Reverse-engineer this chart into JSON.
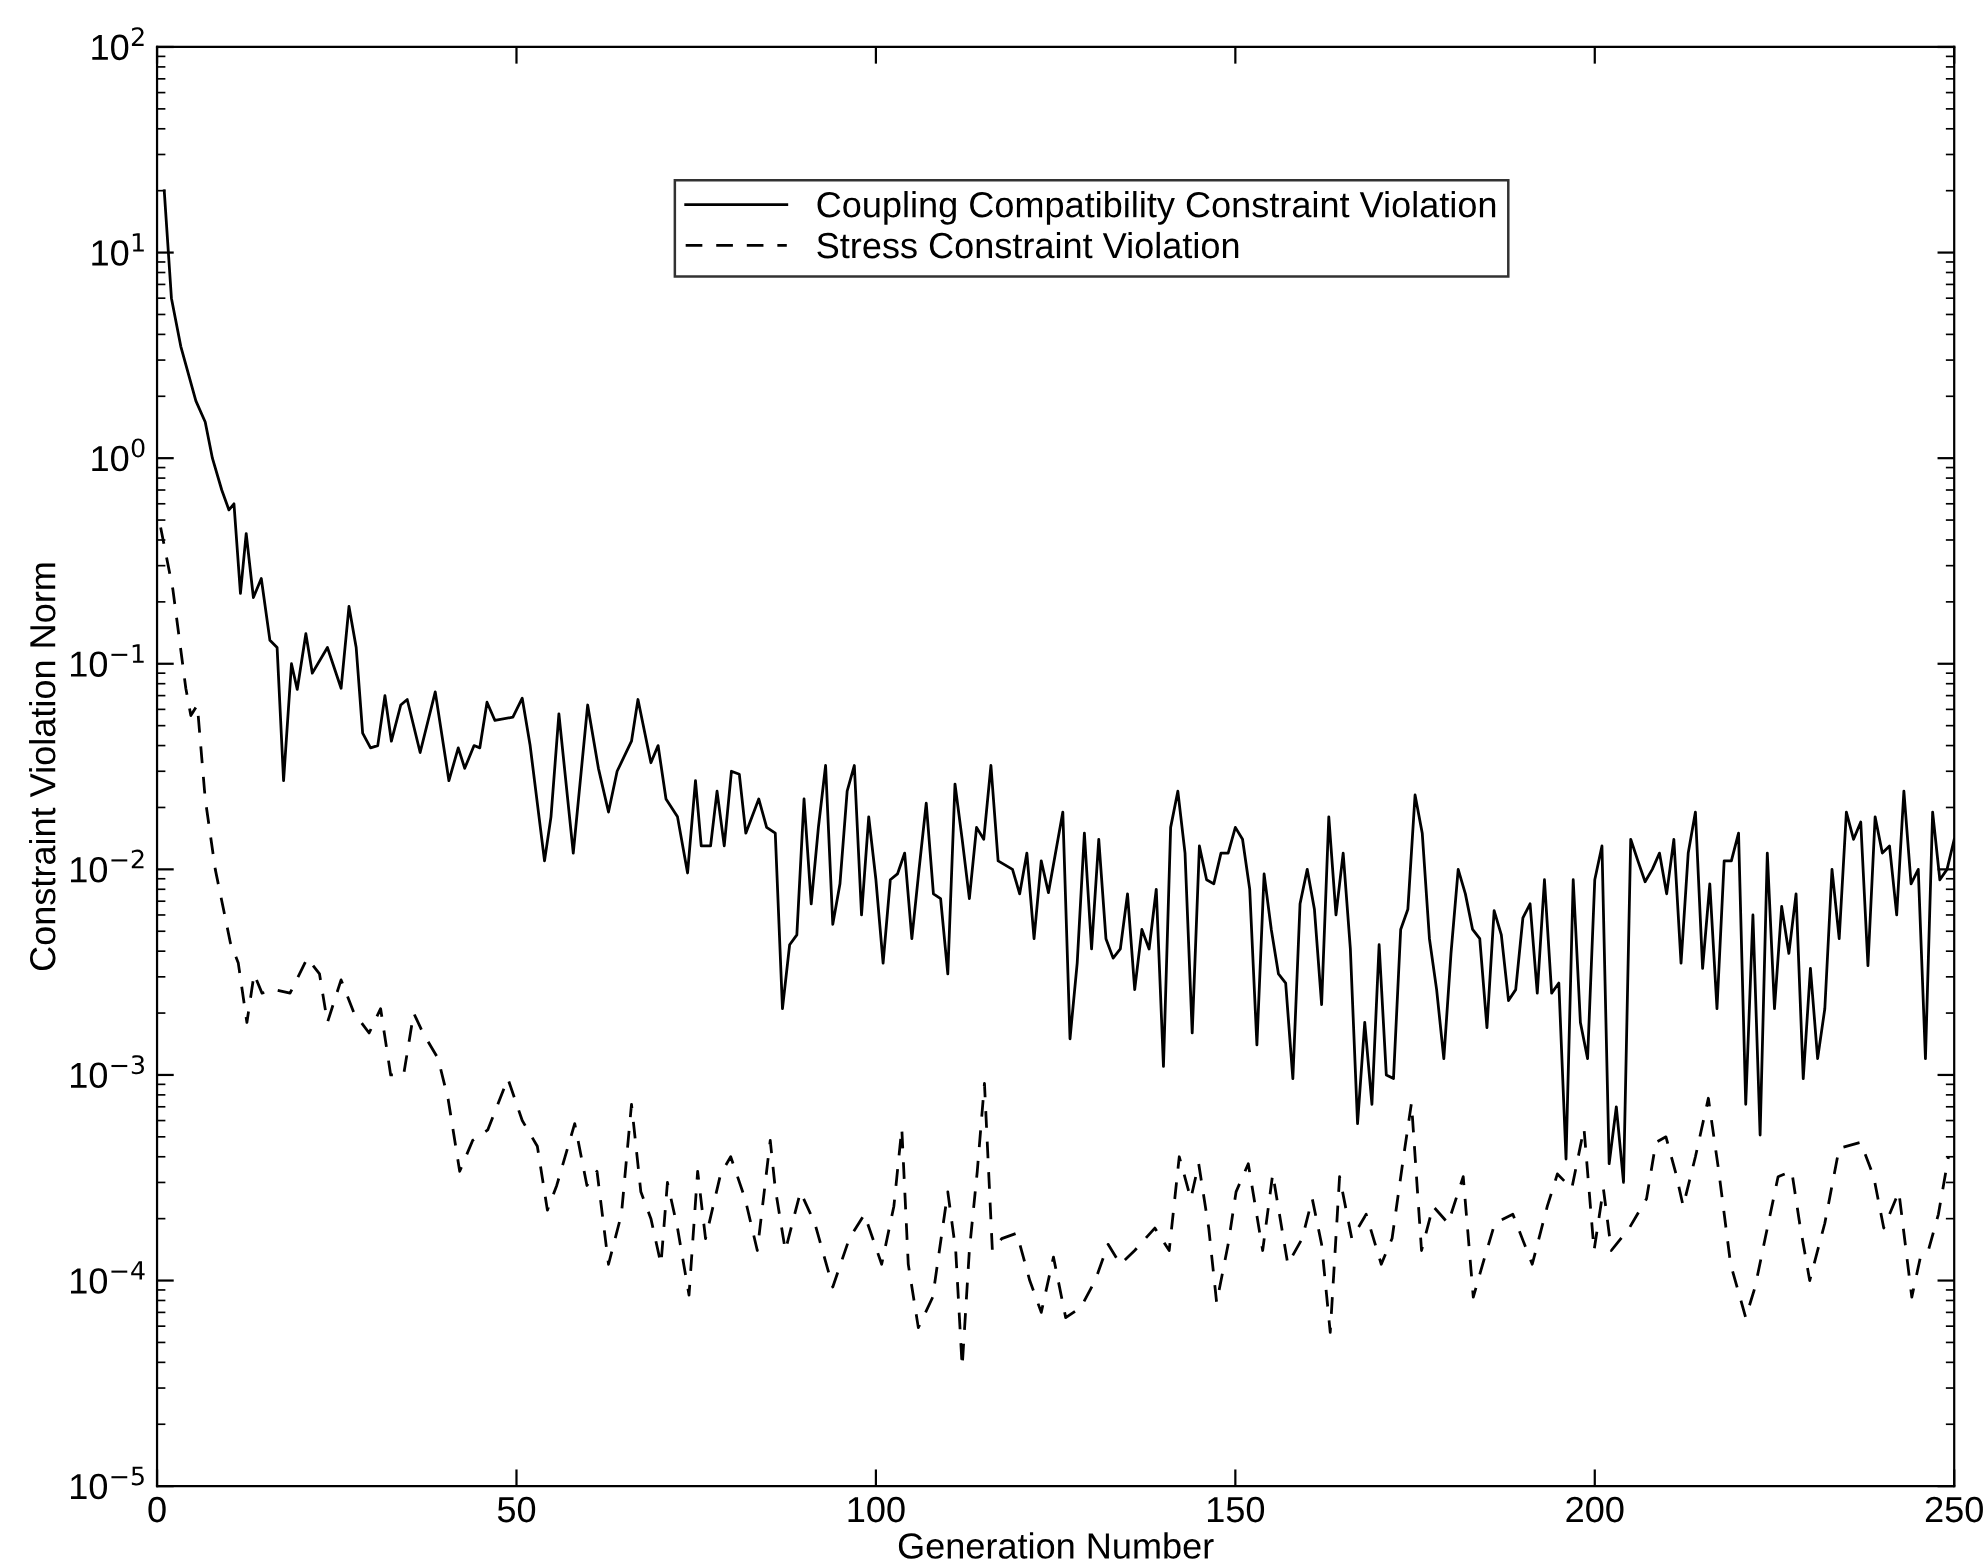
{
  "chart_data": {
    "type": "line",
    "xlabel": "Generation Number",
    "ylabel": "Constraint Violation Norm",
    "log": "y",
    "grid": false,
    "legend": "top",
    "marker": "none",
    "xlim": [
      0,
      250
    ],
    "xticks": [
      0,
      50,
      100,
      150,
      200,
      250
    ],
    "ylim": [
      1e-05,
      100
    ],
    "yticks": [
      {
        "value": 1e-05,
        "label": "10$^{−5}$"
      },
      {
        "value": 0.0001,
        "label": "10$^{−4}$"
      },
      {
        "value": 0.001,
        "label": "10$^{−3}$"
      },
      {
        "value": 0.01,
        "label": "10$^{−2}$"
      },
      {
        "value": 0.1,
        "label": "10$^{−1}$"
      },
      {
        "value": 1,
        "label": "10$^{0}$"
      },
      {
        "value": 10,
        "label": "10$^{1}$"
      },
      {
        "value": 100,
        "label": "10$^{2}$"
      }
    ],
    "series": [
      {
        "name": "Coupling Compatibility Constraint Violation",
        "color": "#000000",
        "line_style": "solid",
        "x": [
          1,
          2,
          3.3,
          5.4,
          6.7,
          7.7,
          9,
          10,
          10.7,
          11.6,
          12.4,
          13.4,
          14.5,
          15.7,
          16.7,
          17.6,
          18.7,
          19.5,
          20.7,
          21.6,
          23.7,
          25.6,
          26.7,
          27.7,
          28.6,
          29.7,
          30.7,
          31.7,
          32.6,
          33.9,
          34.8,
          36.6,
          38.7,
          40.6,
          41.9,
          42.8,
          44.1,
          44.9,
          45.9,
          47,
          49.5,
          50.8,
          51.9,
          53.9,
          54.8,
          55.9,
          57.9,
          59.9,
          61.4,
          62.8,
          64,
          66,
          66.9,
          68.7,
          69.7,
          70.8,
          72.4,
          73.8,
          74.9,
          75.7,
          77,
          77.9,
          78.9,
          79.9,
          81,
          81.9,
          83.7,
          84.8,
          86,
          87,
          88,
          89,
          90,
          91,
          92,
          93,
          94,
          95,
          96,
          97,
          98,
          99,
          100,
          101,
          102,
          103,
          104,
          105,
          106,
          107,
          108,
          109,
          110,
          111,
          112,
          113,
          114,
          115,
          116,
          117,
          119,
          120,
          121,
          122,
          123,
          124,
          126,
          127,
          128,
          129,
          130,
          131,
          132,
          133,
          134,
          135,
          136,
          137,
          138,
          139,
          140,
          141,
          142,
          143,
          144,
          145,
          146,
          147,
          148,
          149,
          150,
          151,
          152,
          153,
          154,
          155,
          156,
          157,
          158,
          159,
          160,
          161,
          162,
          163,
          164,
          165,
          166,
          167,
          168,
          169,
          170,
          171,
          172,
          173,
          174,
          175,
          176,
          177,
          178,
          179,
          180,
          181,
          182,
          183,
          184,
          185,
          186,
          187,
          188,
          189,
          190,
          191,
          192,
          193,
          194,
          195,
          196,
          197,
          198,
          199,
          200,
          201,
          202,
          203,
          204,
          205,
          206,
          207,
          208,
          209,
          210,
          211,
          212,
          213,
          214,
          215,
          216,
          217,
          218,
          219,
          220,
          221,
          222,
          223,
          224,
          225,
          226,
          227,
          228,
          229,
          230,
          231,
          232,
          233,
          234,
          235,
          236,
          237,
          238,
          239,
          240,
          241,
          242,
          243,
          244,
          245,
          246,
          247,
          248,
          249,
          250
        ],
        "values": [
          20,
          6,
          3.5,
          1.9,
          1.5,
          1.0,
          0.7,
          0.56,
          0.6,
          0.22,
          0.43,
          0.21,
          0.26,
          0.13,
          0.12,
          0.027,
          0.1,
          0.075,
          0.14,
          0.09,
          0.12,
          0.076,
          0.19,
          0.12,
          0.046,
          0.039,
          0.04,
          0.07,
          0.042,
          0.063,
          0.067,
          0.037,
          0.073,
          0.027,
          0.039,
          0.031,
          0.04,
          0.039,
          0.065,
          0.053,
          0.055,
          0.068,
          0.04,
          0.011,
          0.018,
          0.057,
          0.012,
          0.063,
          0.031,
          0.019,
          0.03,
          0.042,
          0.067,
          0.033,
          0.04,
          0.022,
          0.018,
          0.0096,
          0.027,
          0.013,
          0.013,
          0.024,
          0.013,
          0.03,
          0.029,
          0.015,
          0.022,
          0.016,
          0.015,
          0.0021,
          0.0043,
          0.0048,
          0.022,
          0.0068,
          0.016,
          0.032,
          0.0054,
          0.0085,
          0.024,
          0.032,
          0.006,
          0.018,
          0.0089,
          0.0035,
          0.0089,
          0.0095,
          0.012,
          0.0046,
          0.01,
          0.021,
          0.0076,
          0.0072,
          0.0031,
          0.026,
          0.014,
          0.0072,
          0.016,
          0.014,
          0.032,
          0.011,
          0.01,
          0.0076,
          0.012,
          0.0046,
          0.011,
          0.0077,
          0.019,
          0.0015,
          0.0035,
          0.015,
          0.0041,
          0.014,
          0.0046,
          0.0037,
          0.0041,
          0.0076,
          0.0026,
          0.0051,
          0.0041,
          0.008,
          0.0011,
          0.016,
          0.024,
          0.012,
          0.0016,
          0.013,
          0.0089,
          0.0085,
          0.012,
          0.012,
          0.016,
          0.014,
          0.008,
          0.0014,
          0.0095,
          0.0051,
          0.0031,
          0.0028,
          0.00096,
          0.0068,
          0.01,
          0.0064,
          0.0022,
          0.018,
          0.006,
          0.012,
          0.0041,
          0.00058,
          0.0018,
          0.00072,
          0.0043,
          0.001,
          0.00096,
          0.0051,
          0.0064,
          0.023,
          0.015,
          0.0046,
          0.0026,
          0.0012,
          0.0039,
          0.01,
          0.0076,
          0.0051,
          0.0046,
          0.0017,
          0.0063,
          0.0048,
          0.0023,
          0.0026,
          0.0058,
          0.0068,
          0.0025,
          0.0089,
          0.0025,
          0.0028,
          0.00039,
          0.0089,
          0.0018,
          0.0012,
          0.0089,
          0.013,
          0.00037,
          0.0007,
          0.0003,
          0.014,
          0.011,
          0.0087,
          0.01,
          0.012,
          0.0076,
          0.014,
          0.0035,
          0.012,
          0.019,
          0.0033,
          0.0085,
          0.0021,
          0.011,
          0.011,
          0.015,
          0.00072,
          0.006,
          0.00051,
          0.012,
          0.0021,
          0.0066,
          0.0039,
          0.0076,
          0.00096,
          0.0033,
          0.0012,
          0.0021,
          0.01,
          0.0046,
          0.019,
          0.014,
          0.017,
          0.0034,
          0.018,
          0.012,
          0.013,
          0.006,
          0.024,
          0.0085,
          0.01,
          0.0012,
          0.019,
          0.0089,
          0.01,
          0.014
        ]
      },
      {
        "name": "Stress Constraint Violation",
        "color": "#000000",
        "line_style": "dashed",
        "x": [
          0.5,
          2.2,
          4,
          4.7,
          5.6,
          6.7,
          8.1,
          10.2,
          11.3,
          12.5,
          13.5,
          14.6,
          16.4,
          18.5,
          20.9,
          22.6,
          23.7,
          25.6,
          27.4,
          29.5,
          31.1,
          32.5,
          34.3,
          35.7,
          37,
          39.1,
          40.5,
          42.1,
          43.9,
          46,
          48.8,
          50.8,
          52.9,
          54.3,
          55.6,
          58.1,
          59.8,
          61.2,
          62.8,
          64.6,
          66,
          67.3,
          68.7,
          70.1,
          71,
          72.4,
          74,
          75.2,
          76.3,
          78.4,
          79.8,
          81.8,
          83.5,
          85.3,
          86,
          87.4,
          89.5,
          91.5,
          94,
          96.3,
          98.4,
          100.8,
          102.5,
          103.6,
          104.5,
          105.9,
          107.9,
          110,
          111.1,
          112,
          113,
          114.1,
          115.1,
          116.2,
          117.5,
          119.6,
          121.4,
          123,
          124.7,
          126.4,
          128.5,
          130.5,
          132.3,
          134,
          136,
          138.8,
          140.8,
          142.2,
          143.8,
          144.9,
          146.3,
          147.4,
          149,
          150.1,
          151.8,
          153.8,
          155.2,
          157.3,
          159.3,
          160.7,
          162,
          163.2,
          164.5,
          166.2,
          168.2,
          170.3,
          171.8,
          173.4,
          174.5,
          175.9,
          177.5,
          179.6,
          181.7,
          183.1,
          184.4,
          186.1,
          188.6,
          191.3,
          193.4,
          194.8,
          196.8,
          198.5,
          199.9,
          201.2,
          202.3,
          204.8,
          207.2,
          208.5,
          209.9,
          211.3,
          212.3,
          214,
          215.8,
          217.2,
          218.9,
          221,
          222.3,
          223.7,
          225.5,
          227.4,
          228.5,
          229.9,
          232,
          234,
          237,
          238.8,
          240.2,
          242.3,
          244.1,
          245.3,
          246.4,
          247.8,
          249.2
        ],
        "values": [
          0.46,
          0.23,
          0.076,
          0.056,
          0.063,
          0.022,
          0.01,
          0.0044,
          0.0035,
          0.0018,
          0.0031,
          0.0025,
          0.0026,
          0.0025,
          0.0037,
          0.0031,
          0.0018,
          0.0029,
          0.002,
          0.0016,
          0.0021,
          0.001,
          0.001,
          0.002,
          0.0016,
          0.0012,
          0.00076,
          0.00034,
          0.00048,
          0.00054,
          0.00096,
          0.0006,
          0.00045,
          0.00022,
          0.00029,
          0.00058,
          0.00029,
          0.00034,
          0.00012,
          0.00021,
          0.00072,
          0.00027,
          0.0002,
          0.00012,
          0.0003,
          0.00018,
          8.5e-05,
          0.00034,
          0.00016,
          0.00033,
          0.0004,
          0.00025,
          0.00014,
          0.00048,
          0.00028,
          0.00014,
          0.00027,
          0.00019,
          9.3e-05,
          0.00016,
          0.00021,
          0.00012,
          0.00023,
          0.00055,
          0.00012,
          5.9e-05,
          8.3e-05,
          0.00027,
          0.00014,
          3.8e-05,
          0.00014,
          0.00034,
          0.00091,
          0.00014,
          0.00016,
          0.00017,
          0.0001,
          7e-05,
          0.00013,
          6.6e-05,
          7.4e-05,
          0.0001,
          0.00015,
          0.00012,
          0.00014,
          0.00018,
          0.00014,
          0.0004,
          0.00025,
          0.00037,
          0.00018,
          7.8e-05,
          0.00015,
          0.00027,
          0.00037,
          0.00014,
          0.00033,
          0.00012,
          0.00016,
          0.00025,
          0.00015,
          5.6e-05,
          0.00032,
          0.00016,
          0.00021,
          0.00012,
          0.00016,
          0.0004,
          0.00073,
          0.00014,
          0.00023,
          0.00019,
          0.00032,
          8.3e-05,
          0.00012,
          0.00019,
          0.00021,
          0.00012,
          0.00023,
          0.00033,
          0.00028,
          0.00055,
          0.00014,
          0.00028,
          0.00014,
          0.00018,
          0.00025,
          0.00047,
          0.0005,
          0.00033,
          0.00023,
          0.0004,
          0.00077,
          0.00035,
          0.00012,
          6.6e-05,
          9.3e-05,
          0.00016,
          0.00032,
          0.00034,
          0.00019,
          0.0001,
          0.00019,
          0.00044,
          0.00047,
          0.00032,
          0.00018,
          0.00027,
          8.3e-05,
          0.00013,
          0.00014,
          0.00021,
          0.0004
        ]
      }
    ]
  }
}
